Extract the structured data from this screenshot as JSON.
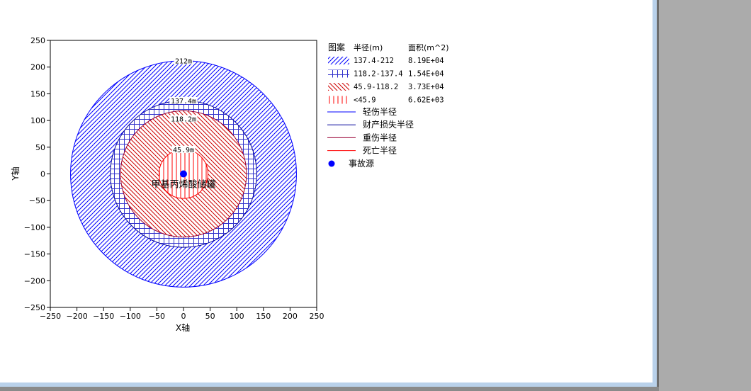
{
  "chart_data": {
    "type": "concentric-zones",
    "xlabel": "X轴",
    "ylabel": "Y轴",
    "xlim": [
      -250,
      250
    ],
    "ylim": [
      -250,
      250
    ],
    "ticks": [
      -250,
      -200,
      -150,
      -100,
      -50,
      0,
      50,
      100,
      150,
      200,
      250
    ],
    "tick_labels": [
      "−250",
      "−200",
      "−150",
      "−100",
      "−50",
      "0",
      "50",
      "100",
      "150",
      "200",
      "250"
    ],
    "source": {
      "name": "事故源",
      "label": "甲基丙烯酸储罐",
      "x": 0,
      "y": 0,
      "color": "#0000ff"
    },
    "zones": [
      {
        "label": "137.4-212",
        "inner": 137.4,
        "outer": 212,
        "area": "8.19E+04",
        "pattern": "diagonal-right",
        "color": "#0000ff"
      },
      {
        "label": "118.2-137.4",
        "inner": 118.2,
        "outer": 137.4,
        "area": "1.54E+04",
        "pattern": "grid",
        "color": "#3333cc"
      },
      {
        "label": "45.9-118.2",
        "inner": 45.9,
        "outer": 118.2,
        "area": "3.73E+04",
        "pattern": "diagonal-left",
        "color": "#cc0000"
      },
      {
        "label": "<45.9",
        "inner": 0,
        "outer": 45.9,
        "area": "6.62E+03",
        "pattern": "vertical",
        "color": "#ff0000"
      }
    ],
    "radii": [
      {
        "name": "轻伤半径",
        "radius": 212,
        "label": "212m",
        "color": "#0000ff"
      },
      {
        "name": "财产损失半径",
        "radius": 137.4,
        "label": "137.4m",
        "color": "#000099"
      },
      {
        "name": "重伤半径",
        "radius": 118.2,
        "label": "118.2m",
        "color": "#990033"
      },
      {
        "name": "死亡半径",
        "radius": 45.9,
        "label": "45.9m",
        "color": "#ff0000"
      }
    ],
    "legend": {
      "position": "right",
      "header": {
        "pattern": "图案",
        "radius": "半径(m)",
        "area": "面积(m^2)"
      }
    }
  }
}
